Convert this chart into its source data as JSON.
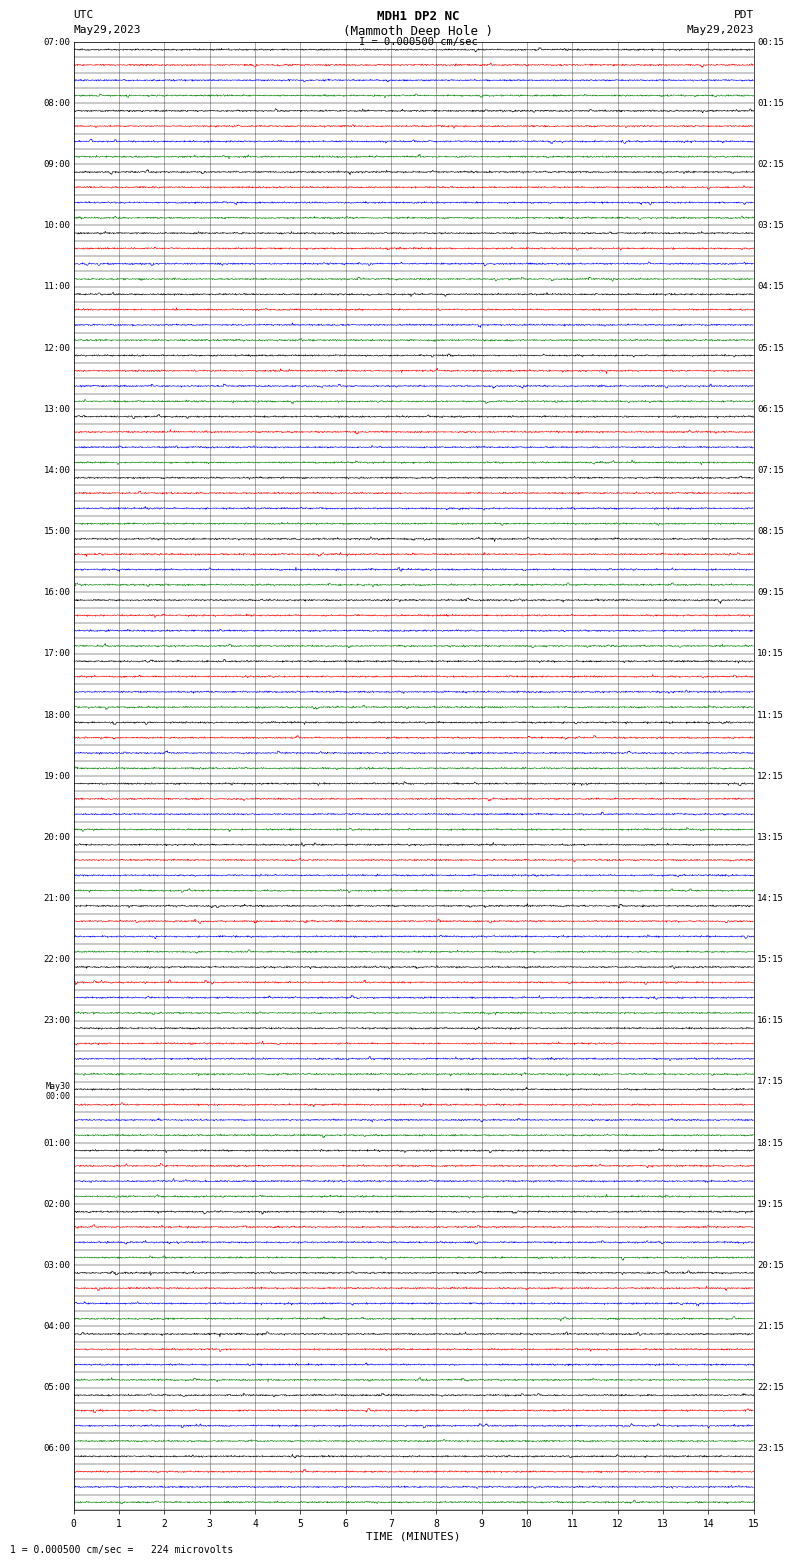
{
  "title_line1": "MDH1 DP2 NC",
  "title_line2": "(Mammoth Deep Hole )",
  "title_line3": "I = 0.000500 cm/sec",
  "left_label": "UTC",
  "left_date": "May29,2023",
  "right_label": "PDT",
  "right_date": "May29,2023",
  "xlabel": "TIME (MINUTES)",
  "bottom_note": "1 = 0.000500 cm/sec =   224 microvolts",
  "xlim": [
    0,
    15
  ],
  "xticks": [
    0,
    1,
    2,
    3,
    4,
    5,
    6,
    7,
    8,
    9,
    10,
    11,
    12,
    13,
    14,
    15
  ],
  "left_times_labeled": [
    "07:00",
    "08:00",
    "09:00",
    "10:00",
    "11:00",
    "12:00",
    "13:00",
    "14:00",
    "15:00",
    "16:00",
    "17:00",
    "18:00",
    "19:00",
    "20:00",
    "21:00",
    "22:00",
    "23:00",
    "May30\n00:00",
    "01:00",
    "02:00",
    "03:00",
    "04:00",
    "05:00",
    "06:00"
  ],
  "right_times_labeled": [
    "00:15",
    "01:15",
    "02:15",
    "03:15",
    "04:15",
    "05:15",
    "06:15",
    "07:15",
    "08:15",
    "09:15",
    "10:15",
    "11:15",
    "12:15",
    "13:15",
    "14:15",
    "15:15",
    "16:15",
    "17:15",
    "18:15",
    "19:15",
    "20:15",
    "21:15",
    "22:15",
    "23:15"
  ],
  "n_hours": 24,
  "traces_per_hour": 4,
  "trace_colors": [
    "#000000",
    "#ff0000",
    "#0000ff",
    "#008000"
  ],
  "bg_color": "#ffffff",
  "grid_color_v": "#888888",
  "grid_color_h": "#000000"
}
